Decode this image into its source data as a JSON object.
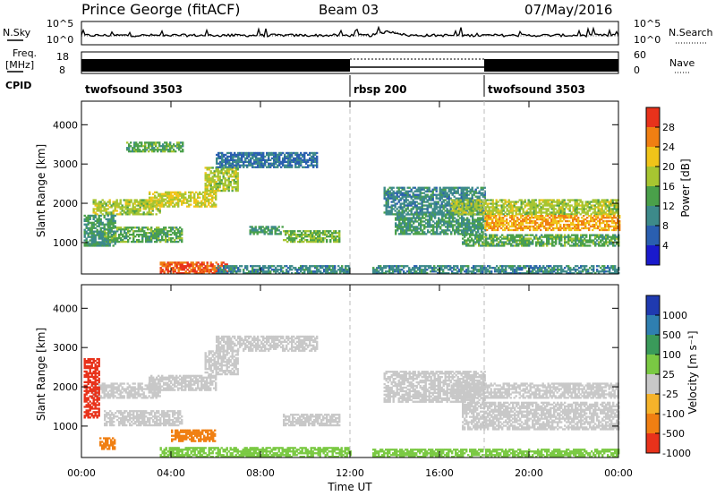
{
  "header": {
    "station": "Prince George (fitACF)",
    "beam": "Beam 03",
    "date": "07/May/2016"
  },
  "side_labels": {
    "nsky": "N.Sky",
    "nsearch": "N.Search",
    "freq_line1": "Freq.",
    "freq_line2": "[MHz]",
    "nave": "Nave",
    "cpid": "CPID"
  },
  "cpid_segments": [
    {
      "label": "twofsound 3503",
      "start_h": 0,
      "end_h": 12
    },
    {
      "label": "rbsp 200",
      "start_h": 12,
      "end_h": 18
    },
    {
      "label": "twofsound 3503",
      "start_h": 18,
      "end_h": 24
    }
  ],
  "noise_panel": {
    "left_ticks": [
      "10^5",
      "10^0"
    ],
    "right_ticks": [
      "10^5",
      "10^0"
    ]
  },
  "freq_panel": {
    "left_ticks": [
      18,
      8
    ],
    "right_ticks": [
      60,
      0
    ]
  },
  "chart_data": [
    {
      "type": "heatmap",
      "name": "power",
      "ylabel": "Slant Range [km]",
      "y_ticks": [
        1000,
        2000,
        3000,
        4000
      ],
      "ylim": [
        200,
        4600
      ],
      "x_ticks": [
        "00:00",
        "04:00",
        "08:00",
        "12:00",
        "16:00",
        "20:00",
        "00:00"
      ],
      "xlim_hours": [
        0,
        24
      ],
      "colorbar": {
        "label": "Power [dB]",
        "ticks": [
          4,
          8,
          12,
          16,
          20,
          24,
          28
        ],
        "colors": [
          "#1a1acc",
          "#2a5fb0",
          "#3d8a8a",
          "#4aa04a",
          "#a7c531",
          "#f0c419",
          "#f07f12",
          "#e8321b"
        ]
      },
      "regions": [
        {
          "t0": 0.5,
          "t1": 3.5,
          "r0": 1700,
          "r1": 2100,
          "v": 18
        },
        {
          "t0": 3.0,
          "t1": 6.0,
          "r0": 1900,
          "r1": 2300,
          "v": 20
        },
        {
          "t0": 5.5,
          "t1": 7.0,
          "r0": 2300,
          "r1": 2900,
          "v": 18
        },
        {
          "t0": 6.0,
          "t1": 10.5,
          "r0": 2900,
          "r1": 3300,
          "v": 8
        },
        {
          "t0": 2.0,
          "t1": 4.5,
          "r0": 3300,
          "r1": 3550,
          "v": 14
        },
        {
          "t0": 0.1,
          "t1": 1.5,
          "r0": 900,
          "r1": 1700,
          "v": 12
        },
        {
          "t0": 1.0,
          "t1": 4.5,
          "r0": 1000,
          "r1": 1400,
          "v": 14
        },
        {
          "t0": 3.5,
          "t1": 6.5,
          "r0": 200,
          "r1": 500,
          "v": 28
        },
        {
          "t0": 6.0,
          "t1": 12.0,
          "r0": 200,
          "r1": 400,
          "v": 10
        },
        {
          "t0": 7.5,
          "t1": 9.0,
          "r0": 1200,
          "r1": 1400,
          "v": 12
        },
        {
          "t0": 9.0,
          "t1": 11.5,
          "r0": 1000,
          "r1": 1300,
          "v": 16
        },
        {
          "t0": 13.5,
          "t1": 18.0,
          "r0": 1700,
          "r1": 2400,
          "v": 10
        },
        {
          "t0": 14.0,
          "t1": 18.0,
          "r0": 1200,
          "r1": 1700,
          "v": 12
        },
        {
          "t0": 16.5,
          "t1": 24.0,
          "r0": 1700,
          "r1": 2100,
          "v": 18
        },
        {
          "t0": 18.0,
          "t1": 24.0,
          "r0": 1300,
          "r1": 1700,
          "v": 24
        },
        {
          "t0": 17.0,
          "t1": 24.0,
          "r0": 900,
          "r1": 1200,
          "v": 14
        },
        {
          "t0": 13.0,
          "t1": 24.0,
          "r0": 200,
          "r1": 400,
          "v": 10
        }
      ]
    },
    {
      "type": "heatmap",
      "name": "velocity",
      "ylabel": "Slant Range [km]",
      "y_ticks": [
        1000,
        2000,
        3000,
        4000
      ],
      "ylim": [
        200,
        4600
      ],
      "x_ticks": [
        "00:00",
        "04:00",
        "08:00",
        "12:00",
        "16:00",
        "20:00",
        "00:00"
      ],
      "xlim_hours": [
        0,
        24
      ],
      "xlabel": "Time UT",
      "colorbar": {
        "label": "Velocity [m s⁻¹]",
        "ticks": [
          1000,
          500,
          100,
          25,
          -25,
          -100,
          -500,
          -1000
        ],
        "colors": [
          "#1f3ab0",
          "#2f7fb0",
          "#3a9a5a",
          "#7ac943",
          "#c8c8c8",
          "#f5b32a",
          "#f07f12",
          "#e8321b"
        ]
      },
      "regions": [
        {
          "t0": 0.5,
          "t1": 3.5,
          "r0": 1700,
          "r1": 2100,
          "v": 0
        },
        {
          "t0": 3.0,
          "t1": 6.0,
          "r0": 1900,
          "r1": 2300,
          "v": 0
        },
        {
          "t0": 5.5,
          "t1": 7.0,
          "r0": 2300,
          "r1": 2900,
          "v": 0
        },
        {
          "t0": 6.0,
          "t1": 10.5,
          "r0": 2900,
          "r1": 3300,
          "v": 0
        },
        {
          "t0": 1.0,
          "t1": 4.5,
          "r0": 1000,
          "r1": 1400,
          "v": 0
        },
        {
          "t0": 0.1,
          "t1": 0.8,
          "r0": 1200,
          "r1": 2700,
          "v": -800
        },
        {
          "t0": 0.8,
          "t1": 1.5,
          "r0": 400,
          "r1": 700,
          "v": -300
        },
        {
          "t0": 4.0,
          "t1": 6.0,
          "r0": 600,
          "r1": 900,
          "v": -300
        },
        {
          "t0": 3.5,
          "t1": 12.0,
          "r0": 200,
          "r1": 450,
          "v": 60
        },
        {
          "t0": 9.0,
          "t1": 11.5,
          "r0": 1000,
          "r1": 1300,
          "v": 0
        },
        {
          "t0": 13.5,
          "t1": 18.0,
          "r0": 1600,
          "r1": 2400,
          "v": 0
        },
        {
          "t0": 16.5,
          "t1": 24.0,
          "r0": 1700,
          "r1": 2100,
          "v": 0
        },
        {
          "t0": 17.0,
          "t1": 24.0,
          "r0": 900,
          "r1": 1600,
          "v": 0
        },
        {
          "t0": 13.0,
          "t1": 24.0,
          "r0": 200,
          "r1": 400,
          "v": 60
        }
      ]
    }
  ]
}
